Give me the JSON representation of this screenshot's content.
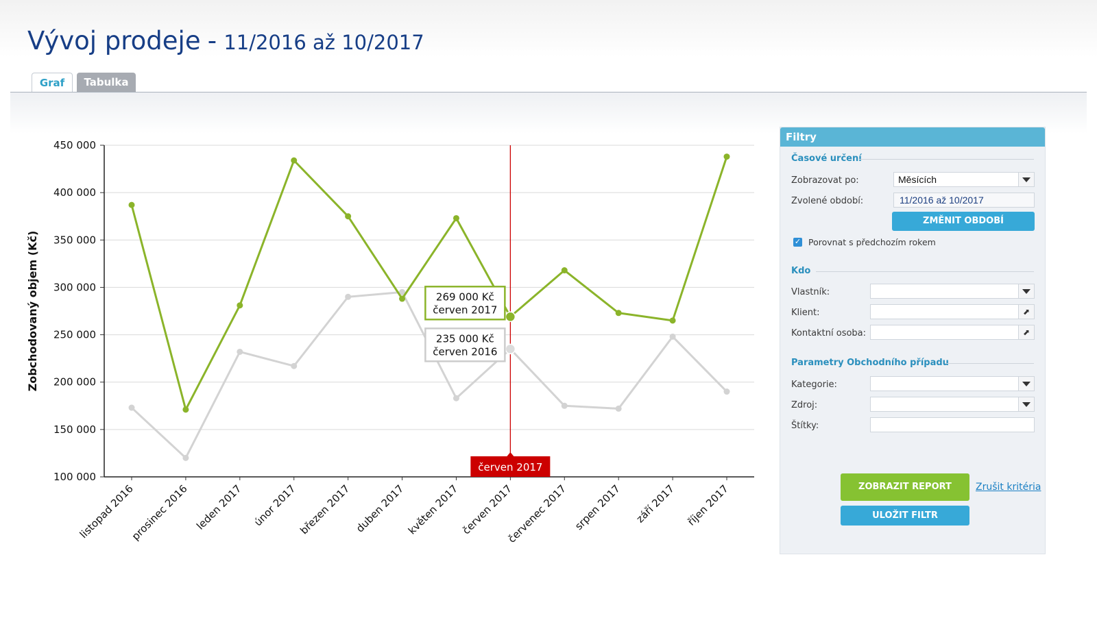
{
  "header": {
    "title": "Vývoj prodeje",
    "separator": "-",
    "period": "11/2016 až 10/2017"
  },
  "tabs": [
    {
      "label": "Graf",
      "active": true
    },
    {
      "label": "Tabulka",
      "active": false
    }
  ],
  "chart_data": {
    "type": "line",
    "ylabel": "Zobchodovaný objem (Kč)",
    "ylim": [
      100000,
      450000
    ],
    "yticks": [
      "450 000",
      "400 000",
      "350 000",
      "300 000",
      "250 000",
      "200 000",
      "150 000",
      "100 000"
    ],
    "ytick_values": [
      450000,
      400000,
      350000,
      300000,
      250000,
      200000,
      150000,
      100000
    ],
    "categories": [
      "listopad 2016",
      "prosinec 2016",
      "leden 2017",
      "únor 2017",
      "březen 2017",
      "duben 2017",
      "květen 2017",
      "červen 2017",
      "červenec 2017",
      "srpen 2017",
      "září 2017",
      "říjen 2017"
    ],
    "series": [
      {
        "values": [
          387000,
          171000,
          281000,
          434000,
          375000,
          288000,
          373000,
          269000,
          318000,
          273000,
          265000,
          438000
        ],
        "color": "#8bb42a"
      },
      {
        "values": [
          173000,
          120000,
          232000,
          217000,
          290000,
          295000,
          183000,
          235000,
          175000,
          172000,
          248000,
          190000
        ],
        "color": "#d3d3d3"
      }
    ],
    "grid": true,
    "highlight": {
      "index": 7,
      "marker_label": "červen 2017",
      "marker_color": "#cc0000",
      "tooltips": [
        {
          "value": "269 000 Kč",
          "period": "červen 2017"
        },
        {
          "value": "235 000 Kč",
          "period": "červen 2016"
        }
      ]
    }
  },
  "filters": {
    "title": "Filtry",
    "time_section": {
      "title": "Časové určení",
      "display_by_label": "Zobrazovat po:",
      "display_by_value": "Měsících",
      "period_label": "Zvolené období:",
      "period_value": "11/2016 až 10/2017",
      "change_period_button": "ZMĚNIT OBDOBÍ",
      "compare_label": "Porovnat s předchozím rokem",
      "compare_checked": true
    },
    "who_section": {
      "title": "Kdo",
      "owner_label": "Vlastník:",
      "client_label": "Klient:",
      "contact_label": "Kontaktní osoba:"
    },
    "params_section": {
      "title": "Parametry Obchodního případu",
      "category_label": "Kategorie:",
      "source_label": "Zdroj:",
      "tags_label": "Štítky:"
    },
    "show_report_button": "ZOBRAZIT REPORT",
    "cancel_link": "Zrušit kritéria",
    "save_filter_button": "ULOŽIT FILTR"
  }
}
